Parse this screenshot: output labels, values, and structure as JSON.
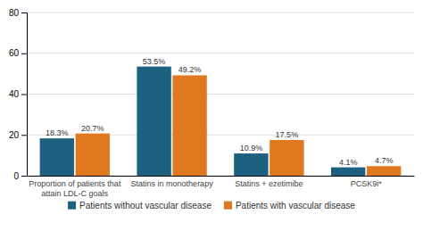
{
  "chart_data": {
    "type": "bar",
    "categories": [
      "Proportion of patients that\nattain LDL-C goals",
      "Statins in monotherapy",
      "Statins + ezetimibe",
      "PCSK9i*"
    ],
    "series": [
      {
        "name": "Patients without vascular disease",
        "color": "#1d6080",
        "values": [
          18.3,
          53.5,
          10.9,
          4.1
        ],
        "value_labels": [
          "18.3%",
          "53.5%",
          "10.9%",
          "4.1%"
        ]
      },
      {
        "name": "Patients with vascular disease",
        "color": "#e07820",
        "values": [
          20.7,
          49.2,
          17.5,
          4.7
        ],
        "value_labels": [
          "20.7%",
          "49.2%",
          "17.5%",
          "4.7%"
        ]
      }
    ],
    "ylim": [
      0,
      80
    ],
    "yticks": [
      0,
      20,
      40,
      60,
      80
    ],
    "grid": true,
    "legend": "bottom",
    "data_labels": true
  }
}
